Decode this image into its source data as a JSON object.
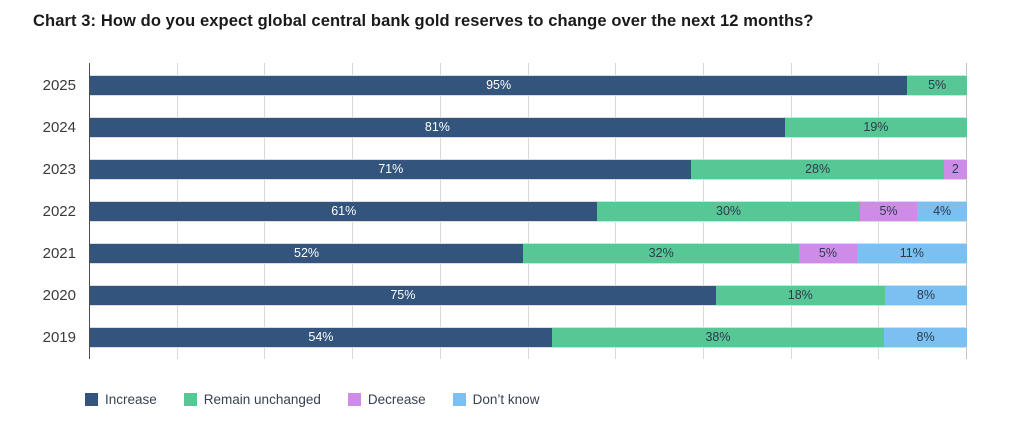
{
  "title": "Chart 3: How do you expect global central bank gold reserves to change over the next 12 months?",
  "colors": {
    "increase": "#32547d",
    "remain_unchanged": "#57c795",
    "decrease": "#ce8ce8",
    "dont_know": "#7bc0f1",
    "grid": "#d9d9d9",
    "axis": "#4d4d4d",
    "label_on_dark": "#ffffff",
    "label_on_light": "#2d3a4e"
  },
  "legend": [
    {
      "key": "increase",
      "label": "Increase"
    },
    {
      "key": "remain_unchanged",
      "label": "Remain unchanged"
    },
    {
      "key": "decrease",
      "label": "Decrease"
    },
    {
      "key": "dont_know",
      "label": "Don’t know"
    }
  ],
  "chart_data": {
    "type": "bar",
    "orientation": "horizontal",
    "stacked": true,
    "title": "Chart 3: How do you expect global central bank gold reserves to change over the next 12 months?",
    "categories": [
      "2025",
      "2024",
      "2023",
      "2022",
      "2021",
      "2020",
      "2019"
    ],
    "series": [
      {
        "name": "Increase",
        "key": "increase",
        "values": [
          95,
          81,
          71,
          61,
          52,
          75,
          54
        ]
      },
      {
        "name": "Remain unchanged",
        "key": "remain_unchanged",
        "values": [
          5,
          19,
          28,
          30,
          32,
          18,
          38
        ]
      },
      {
        "name": "Decrease",
        "key": "decrease",
        "values": [
          0,
          0,
          2,
          5,
          5,
          0,
          0
        ]
      },
      {
        "name": "Don't know",
        "key": "dont_know",
        "values": [
          0,
          0,
          0,
          4,
          11,
          8,
          8
        ]
      }
    ],
    "xlim": [
      0,
      100
    ],
    "grid_interval_pct": 10,
    "legend_position": "bottom",
    "rows": [
      {
        "year": "2025",
        "segments": [
          {
            "key": "increase",
            "value": 95,
            "label": "95%"
          },
          {
            "key": "remain_unchanged",
            "value": 5,
            "label": "5%"
          }
        ]
      },
      {
        "year": "2024",
        "segments": [
          {
            "key": "increase",
            "value": 81,
            "label": "81%"
          },
          {
            "key": "remain_unchanged",
            "value": 19,
            "label": "19%"
          }
        ]
      },
      {
        "year": "2023",
        "segments": [
          {
            "key": "increase",
            "value": 71,
            "label": "71%"
          },
          {
            "key": "remain_unchanged",
            "value": 28,
            "label": "28%"
          },
          {
            "key": "decrease",
            "value": 2,
            "label": "2"
          }
        ]
      },
      {
        "year": "2022",
        "segments": [
          {
            "key": "increase",
            "value": 61,
            "label": "61%"
          },
          {
            "key": "remain_unchanged",
            "value": 30,
            "label": "30%"
          },
          {
            "key": "decrease",
            "value": 5,
            "label": "5%"
          },
          {
            "key": "dont_know",
            "value": 4,
            "label": "4%"
          }
        ]
      },
      {
        "year": "2021",
        "segments": [
          {
            "key": "increase",
            "value": 52,
            "label": "52%"
          },
          {
            "key": "remain_unchanged",
            "value": 32,
            "label": "32%"
          },
          {
            "key": "decrease",
            "value": 5,
            "label": "5%"
          },
          {
            "key": "dont_know",
            "value": 11,
            "label": "11%"
          }
        ]
      },
      {
        "year": "2020",
        "segments": [
          {
            "key": "increase",
            "value": 75,
            "label": "75%"
          },
          {
            "key": "remain_unchanged",
            "value": 18,
            "label": "18%"
          },
          {
            "key": "dont_know",
            "value": 8,
            "label": "8%"
          }
        ]
      },
      {
        "year": "2019",
        "segments": [
          {
            "key": "increase",
            "value": 54,
            "label": "54%"
          },
          {
            "key": "remain_unchanged",
            "value": 38,
            "label": "38%"
          },
          {
            "key": "dont_know",
            "value": 8,
            "label": "8%"
          }
        ]
      }
    ]
  }
}
